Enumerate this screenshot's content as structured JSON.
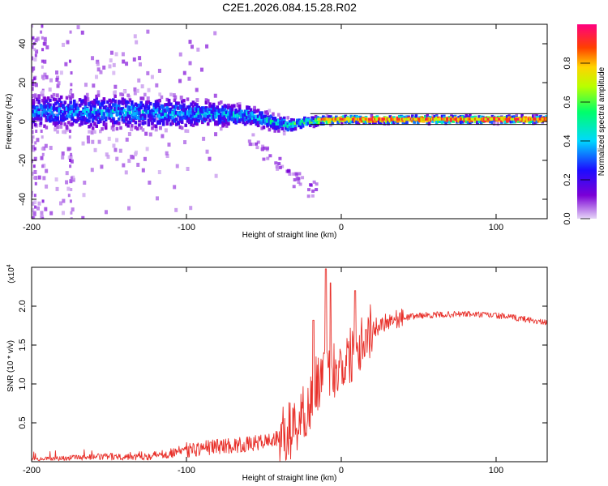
{
  "figure_title": "C2E1.2026.084.15.28.R02",
  "chart_data": [
    {
      "type": "heatmap",
      "title": "C2E1.2026.084.15.28.R02",
      "xlabel": "Height of straight line (km)",
      "ylabel": "Frequency (Hz)",
      "xlim": [
        -200,
        133
      ],
      "ylim": [
        -50,
        50
      ],
      "xticks": [
        -200,
        -100,
        0,
        100
      ],
      "yticks": [
        -40,
        -20,
        0,
        20,
        40
      ],
      "colorbar": {
        "label": "Normalized spectral amplitude",
        "range": [
          0,
          1
        ],
        "ticks": [
          0.0,
          0.2,
          0.4,
          0.6,
          0.8
        ],
        "colors": [
          "#e6d6f7",
          "#7b00d6",
          "#1d0cff",
          "#00d8ff",
          "#00ff6a",
          "#b8ff00",
          "#ffd400",
          "#ff4000",
          "#ff0080"
        ]
      },
      "ridge": [
        {
          "x": -200,
          "f_center": 5,
          "f_spread": 7,
          "amplitude": 0.35
        },
        {
          "x": -150,
          "f_center": 5,
          "f_spread": 7,
          "amplitude": 0.4
        },
        {
          "x": -100,
          "f_center": 4,
          "f_spread": 6,
          "amplitude": 0.4
        },
        {
          "x": -60,
          "f_center": 3,
          "f_spread": 4,
          "amplitude": 0.45
        },
        {
          "x": -35,
          "f_center": -2,
          "f_spread": 3,
          "amplitude": 0.5
        },
        {
          "x": -20,
          "f_center": 0,
          "f_spread": 2,
          "amplitude": 0.6
        },
        {
          "x": 0,
          "f_center": 1,
          "f_spread": 1.5,
          "amplitude": 0.75
        },
        {
          "x": 50,
          "f_center": 1,
          "f_spread": 1.5,
          "amplitude": 0.85
        },
        {
          "x": 100,
          "f_center": 1,
          "f_spread": 1.5,
          "amplitude": 0.85
        },
        {
          "x": 133,
          "f_center": 1,
          "f_spread": 1.5,
          "amplitude": 0.8
        }
      ]
    },
    {
      "type": "line",
      "xlabel": "Height of straight line (km)",
      "ylabel": "SNR (10 * v/v)",
      "y_multiplier": "(x10",
      "y_multiplier_exp": "4",
      "xlim": [
        -200,
        133
      ],
      "ylim": [
        0,
        2.5
      ],
      "xticks": [
        -200,
        -100,
        0,
        100
      ],
      "yticks": [
        0.5,
        1.0,
        1.5,
        2.0
      ],
      "line_color": "#e8302a",
      "series": [
        {
          "name": "SNR",
          "x": [
            -200,
            -160,
            -120,
            -100,
            -80,
            -60,
            -40,
            -30,
            -20,
            -15,
            -10,
            -5,
            0,
            5,
            10,
            20,
            30,
            50,
            80,
            100,
            120,
            133
          ],
          "y": [
            0.03,
            0.06,
            0.08,
            0.15,
            0.2,
            0.22,
            0.3,
            0.45,
            0.75,
            1.05,
            1.2,
            1.2,
            1.25,
            1.35,
            1.5,
            1.7,
            1.82,
            1.88,
            1.9,
            1.88,
            1.83,
            1.78
          ],
          "peaks": [
            {
              "x": -10,
              "y": 2.48
            },
            {
              "x": -7,
              "y": 2.3
            },
            {
              "x": 9,
              "y": 2.2
            },
            {
              "x": -18,
              "y": 1.82
            },
            {
              "x": 16,
              "y": 1.7
            }
          ]
        }
      ]
    }
  ]
}
